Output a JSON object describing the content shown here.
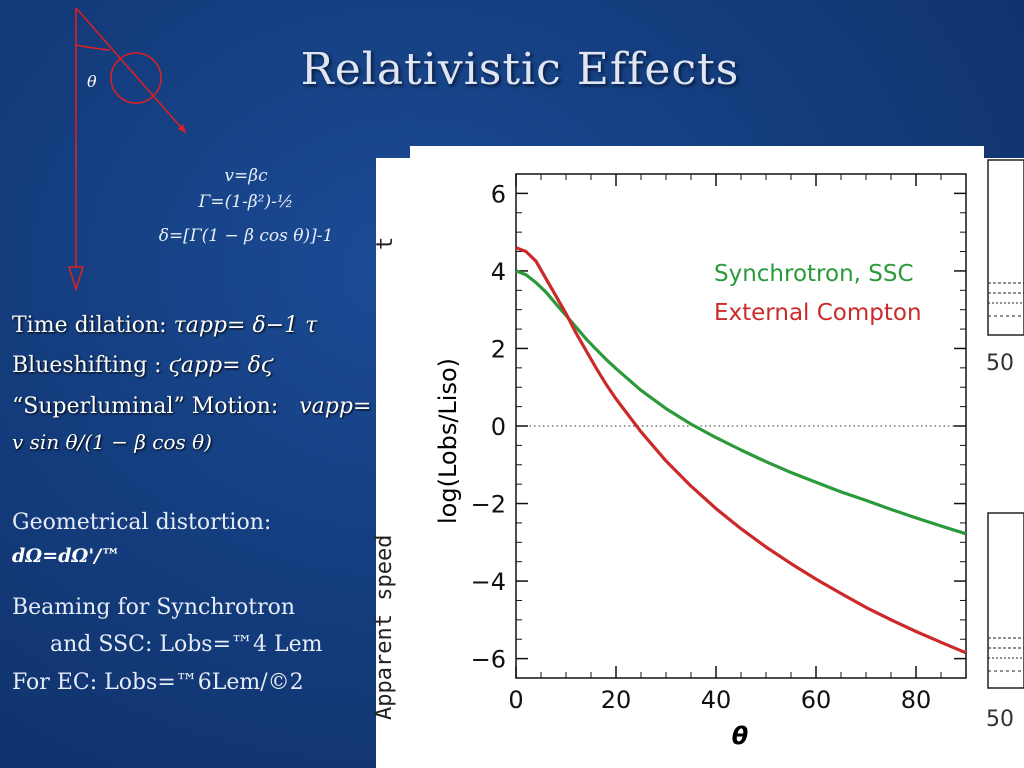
{
  "title": "Relativistic Effects",
  "diagram": {
    "angle_label": "θ"
  },
  "equations": {
    "velocity": "v=βc",
    "lorentz": "Γ=(1-β²)-½",
    "doppler": "δ=[Γ(1 − β cos θ)]-1"
  },
  "bullets": {
    "time_dilation_label": "Time dilation:",
    "time_dilation_formula": "τapp= δ−1 τ",
    "blueshift_label": "Blueshifting :",
    "blueshift_formula": "ϛapp= δϛ",
    "superluminal_label": "“Superluminal” Motion:",
    "superluminal_formula_start": "vapp=",
    "superluminal_formula_cont": "v sin θ/(1 − β  cos θ)"
  },
  "lower_text": {
    "geometric_label": "Geometrical distortion:",
    "geometric_formula": "dΩ=dΩ'/™",
    "beaming_line1": "Beaming for Synchrotron",
    "beaming_line2": "and SSC: Lobs=™4 Lem",
    "ec_line": "For EC: Lobs=™6Lem/©2"
  },
  "background_figure": {
    "ylabel": "Apparent  speed",
    "ylabel_top_fragment": "t",
    "right_ticks": [
      "50",
      "50"
    ]
  },
  "chart_data": {
    "type": "line",
    "xlabel": "θ",
    "ylabel": "log(Lobs/Liso)",
    "xlim": [
      0,
      90
    ],
    "ylim": [
      -6.5,
      6.5
    ],
    "xticks": [
      0,
      20,
      40,
      60,
      80
    ],
    "yticks": [
      6,
      4,
      2,
      0,
      -2,
      -4,
      -6
    ],
    "reference_line_y": 0,
    "x": [
      0,
      2,
      4,
      6,
      8,
      10,
      12,
      14,
      16,
      18,
      20,
      25,
      30,
      35,
      40,
      45,
      50,
      55,
      60,
      65,
      70,
      75,
      80,
      85,
      90
    ],
    "series": [
      {
        "name": "Synchrotron, SSC",
        "color": "#2a9a3a",
        "values": [
          4.0,
          3.9,
          3.7,
          3.45,
          3.15,
          2.85,
          2.55,
          2.25,
          1.98,
          1.72,
          1.48,
          0.92,
          0.45,
          0.05,
          -0.3,
          -0.62,
          -0.92,
          -1.2,
          -1.45,
          -1.7,
          -1.92,
          -2.15,
          -2.37,
          -2.58,
          -2.78
        ]
      },
      {
        "name": "External Compton",
        "color": "#cc2a2a",
        "values": [
          4.6,
          4.5,
          4.25,
          3.8,
          3.35,
          2.9,
          2.4,
          1.95,
          1.5,
          1.08,
          0.7,
          -0.15,
          -0.9,
          -1.55,
          -2.13,
          -2.65,
          -3.12,
          -3.55,
          -3.95,
          -4.32,
          -4.68,
          -5.0,
          -5.3,
          -5.58,
          -5.85
        ]
      }
    ]
  }
}
